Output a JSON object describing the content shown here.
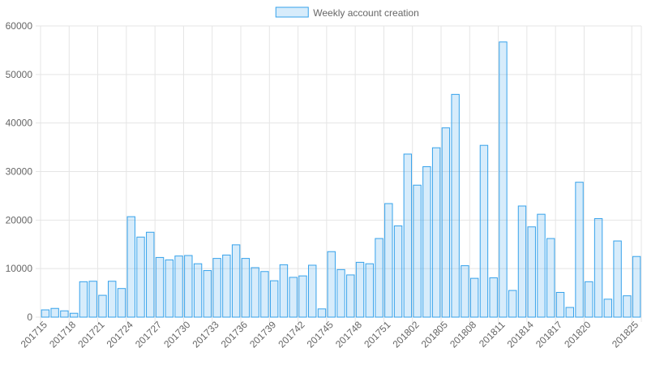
{
  "chart_data": {
    "type": "bar",
    "categories": [
      "201715",
      null,
      null,
      "201718",
      null,
      null,
      "201721",
      null,
      null,
      "201724",
      null,
      null,
      "201727",
      null,
      null,
      "201730",
      null,
      null,
      "201733",
      null,
      null,
      "201736",
      null,
      null,
      "201739",
      null,
      null,
      "201742",
      null,
      null,
      "201745",
      null,
      null,
      "201748",
      null,
      null,
      "201751",
      null,
      null,
      "201802",
      null,
      null,
      "201805",
      null,
      null,
      "201808",
      null,
      null,
      "201811",
      null,
      null,
      "201814",
      null,
      null,
      "201817",
      null,
      null,
      "201820",
      null,
      null,
      null,
      null,
      "201825"
    ],
    "series": [
      {
        "name": "Weekly account creation",
        "color": "#36a2eb",
        "values": [
          1500,
          1800,
          1300,
          800,
          7300,
          7400,
          4500,
          7400,
          5900,
          20700,
          16500,
          17500,
          12300,
          11800,
          12600,
          12700,
          11000,
          9600,
          12100,
          12800,
          14900,
          12100,
          10200,
          9400,
          7500,
          10800,
          8200,
          8500,
          10700,
          1700,
          13500,
          9800,
          8700,
          11300,
          11000,
          16200,
          23400,
          18800,
          33600,
          27200,
          31000,
          34900,
          39000,
          45900,
          10600,
          8000,
          35400,
          8100,
          56700,
          5500,
          22900,
          18600,
          21200,
          16200,
          5100,
          2000,
          27800,
          7300,
          20300,
          3700,
          15700,
          4400,
          12500
        ]
      }
    ],
    "ylim": [
      0,
      60000
    ],
    "yticks": [
      0,
      10000,
      20000,
      30000,
      40000,
      50000,
      60000
    ],
    "grid": true,
    "legend": "top"
  }
}
